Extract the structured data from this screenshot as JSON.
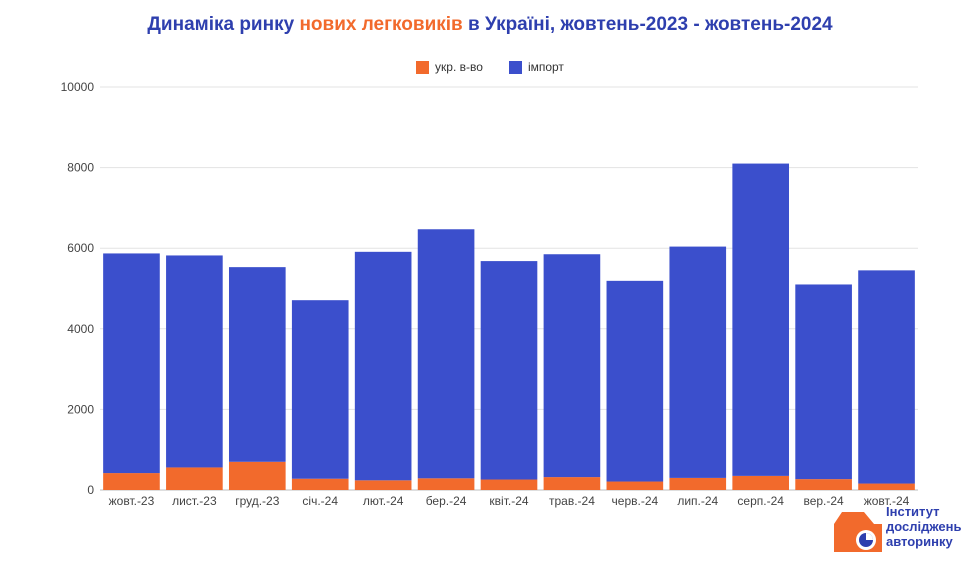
{
  "title": {
    "part1": "Динаміка ринку ",
    "highlight": "нових легковиків",
    "part2": " в Україні, жовтень-2023 - жовтень-2024"
  },
  "colors": {
    "title": "#2e3fae",
    "highlight": "#f26a2c",
    "domestic": "#f26a2c",
    "import": "#3b4fcc",
    "grid": "#e3e3e3"
  },
  "logo": {
    "line1": "Інститут",
    "line2": "досліджень",
    "line3": "авторинку"
  },
  "chart_data": {
    "type": "bar",
    "stacked": true,
    "categories": [
      "жовт.-23",
      "лист.-23",
      "груд.-23",
      "січ.-24",
      "лют.-24",
      "бер.-24",
      "квіт.-24",
      "трав.-24",
      "черв.-24",
      "лип.-24",
      "серп.-24",
      "вер.-24",
      "жовт.-24"
    ],
    "series": [
      {
        "name": "укр. в-во",
        "color": "#f26a2c",
        "values": [
          420,
          560,
          700,
          280,
          240,
          290,
          260,
          320,
          210,
          300,
          350,
          270,
          160
        ]
      },
      {
        "name": "імпорт",
        "color": "#3b4fcc",
        "values": [
          5450,
          5260,
          4830,
          4430,
          5670,
          6180,
          5420,
          5530,
          4980,
          5740,
          7750,
          4830,
          5290
        ]
      }
    ],
    "ylim": [
      0,
      10000
    ],
    "yticks": [
      0,
      2000,
      4000,
      6000,
      8000,
      10000
    ],
    "ytick_labels": [
      "0",
      "2000",
      "4000",
      "6000",
      "8000",
      "10000"
    ],
    "grid": true,
    "legend_position": "top"
  }
}
